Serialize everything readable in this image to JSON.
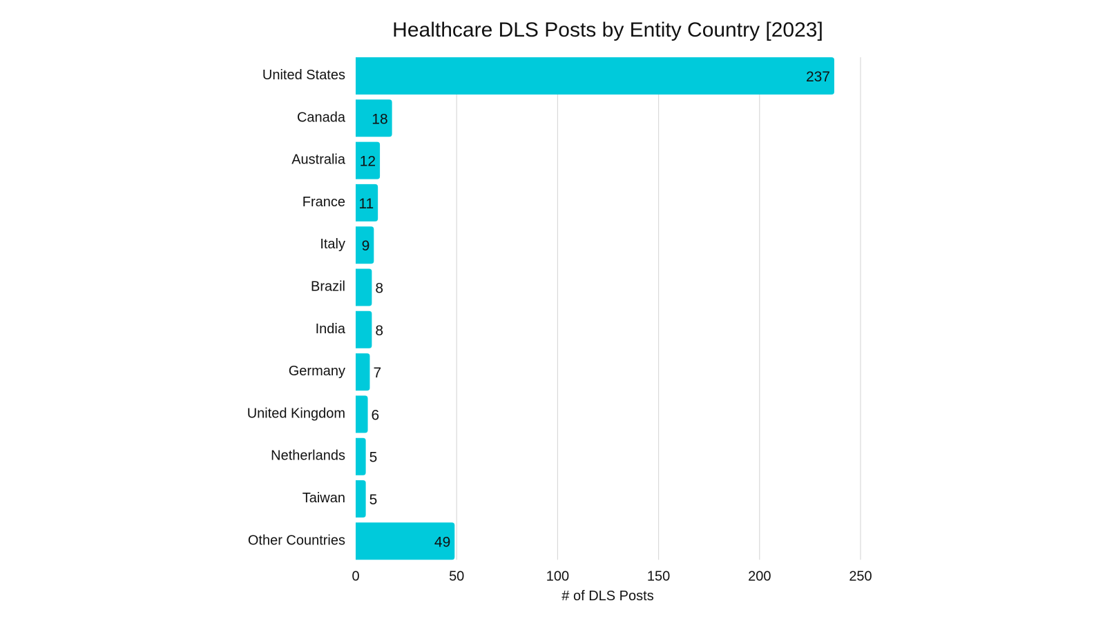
{
  "chart_data": {
    "type": "bar",
    "orientation": "horizontal",
    "title": "Healthcare DLS Posts by Entity Country [2023]",
    "xlabel": "# of DLS Posts",
    "ylabel": "",
    "categories": [
      "United States",
      "Canada",
      "Australia",
      "France",
      "Italy",
      "Brazil",
      "India",
      "Germany",
      "United Kingdom",
      "Netherlands",
      "Taiwan",
      "Other Countries"
    ],
    "values": [
      237,
      18,
      12,
      11,
      9,
      8,
      8,
      7,
      6,
      5,
      5,
      49
    ],
    "xlim": [
      0,
      250
    ],
    "xticks": [
      "0",
      "50",
      "100",
      "150",
      "200",
      "250"
    ],
    "grid": "vertical",
    "legend": "none",
    "bar_color": "#00CADB",
    "grid_color": "#D9D9D9"
  }
}
